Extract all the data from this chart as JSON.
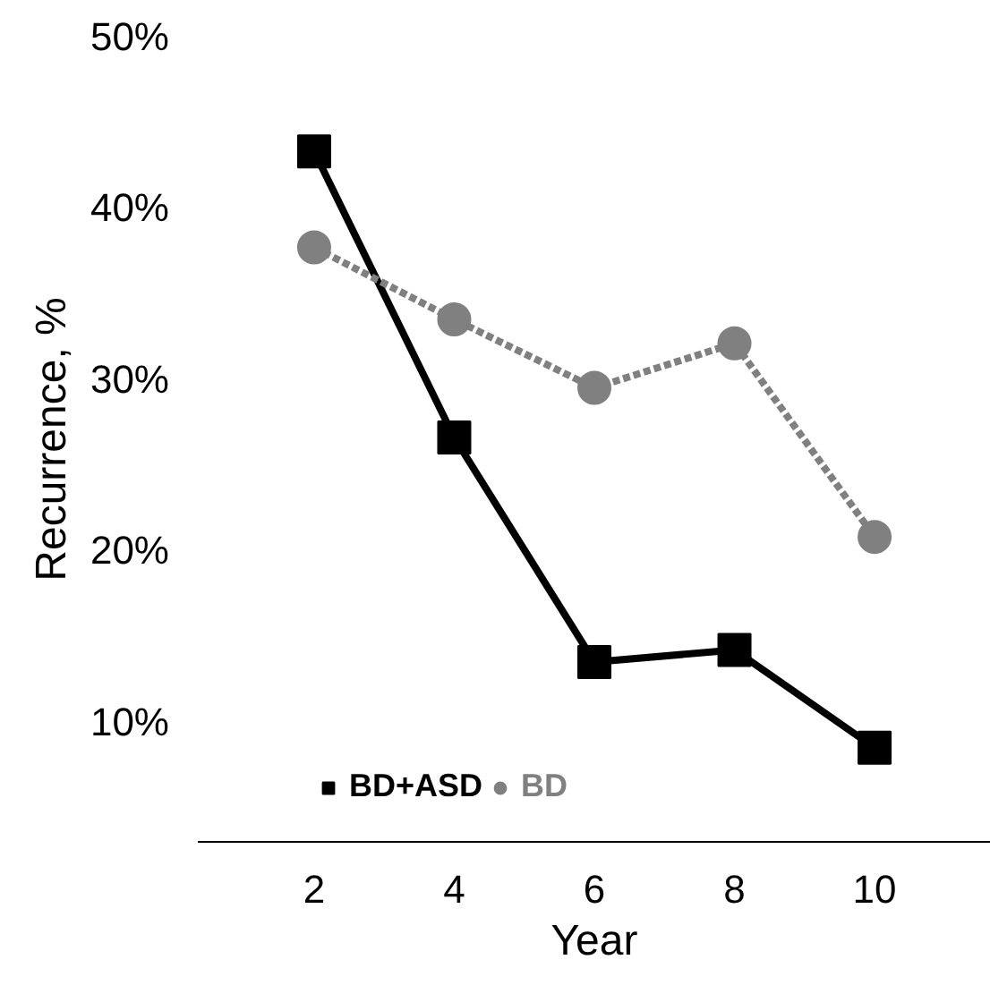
{
  "chart_data": {
    "type": "line",
    "xlabel": "Year",
    "ylabel": "Recurrence, %",
    "x": [
      2,
      4,
      6,
      8,
      10
    ],
    "xlim": [
      0.34,
      11.66
    ],
    "xticks": [
      2,
      4,
      6,
      8,
      10
    ],
    "ylim": [
      3,
      50
    ],
    "yticks": [
      {
        "value": 10,
        "label": "10%"
      },
      {
        "value": 20,
        "label": "20%"
      },
      {
        "value": 30,
        "label": "30%"
      },
      {
        "value": 40,
        "label": "40%"
      },
      {
        "value": 50,
        "label": "50%"
      }
    ],
    "grid": false,
    "legend": "bottom left",
    "series": [
      {
        "name": "BD+ASD",
        "color": "#000000",
        "values": [
          43.3,
          26.6,
          13.5,
          14.2,
          8.5
        ],
        "marker": "square",
        "line_style": "solid"
      },
      {
        "name": "BD",
        "color": "#808080",
        "values": [
          37.7,
          33.5,
          29.5,
          32.1,
          20.8
        ],
        "marker": "circle",
        "line_style": "dotted"
      }
    ]
  }
}
